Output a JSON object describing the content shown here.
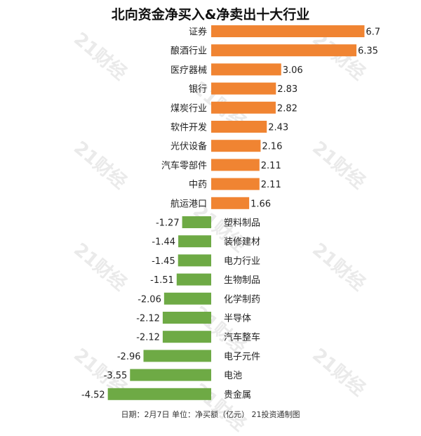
{
  "chart_data": {
    "type": "bar",
    "orientation": "horizontal",
    "title": "北向资金净买入&净卖出十大行业",
    "categories": [
      "证券",
      "酿酒行业",
      "医疗器械",
      "银行",
      "煤炭行业",
      "软件开发",
      "光伏设备",
      "汽车零部件",
      "中药",
      "航运港口",
      "塑料制品",
      "装修建材",
      "电力行业",
      "生物制品",
      "化学制药",
      "半导体",
      "汽车整车",
      "电子元件",
      "电池",
      "贵金属"
    ],
    "values": [
      6.7,
      6.35,
      3.06,
      2.83,
      2.82,
      2.43,
      2.16,
      2.11,
      2.11,
      1.66,
      -1.27,
      -1.44,
      -1.45,
      -1.51,
      -2.06,
      -2.12,
      -2.12,
      -2.96,
      -3.55,
      -4.52
    ],
    "value_labels": [
      "6.7",
      "6.35",
      "3.06",
      "2.83",
      "2.82",
      "2.43",
      "2.16",
      "2.11",
      "2.11",
      "1.66",
      "-1.27",
      "-1.44",
      "-1.45",
      "-1.51",
      "-2.06",
      "-2.12",
      "-2.12",
      "-2.96",
      "-3.55",
      "-4.52"
    ],
    "colors": {
      "positive": "#F08432",
      "negative": "#6EAA45"
    },
    "grid": false,
    "legend": "none"
  },
  "watermark": "21财经",
  "footer": "日期：2月7日  单位：净买额（亿元）  21投资通制图"
}
